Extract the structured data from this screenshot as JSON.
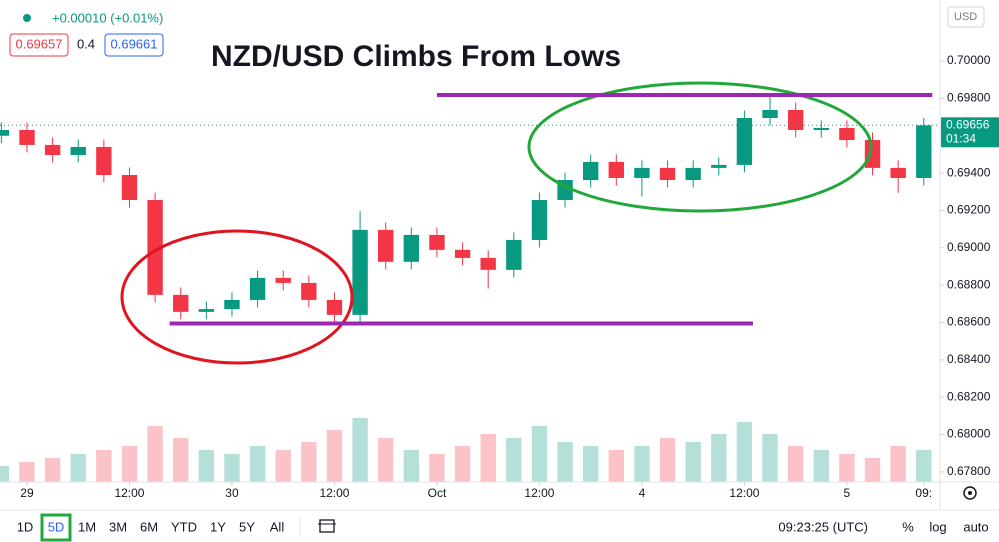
{
  "chart_data": {
    "type": "candlestick",
    "title": "NZD/USD Climbs From Lows",
    "currency": "USD",
    "x": [
      -3,
      0,
      3,
      6,
      9,
      12,
      15,
      18,
      21,
      24,
      27,
      30,
      33,
      36,
      39,
      42,
      45,
      48,
      51,
      54,
      57,
      60,
      63,
      66,
      69,
      72,
      75,
      78,
      81,
      84,
      87,
      90,
      93,
      96,
      99,
      102,
      105
    ],
    "open": [
      0.696,
      0.69631,
      0.69551,
      0.69497,
      0.6954,
      0.6939,
      0.69256,
      0.68748,
      0.68657,
      0.68672,
      0.68721,
      0.68839,
      0.68812,
      0.68721,
      0.68641,
      0.69096,
      0.68925,
      0.69069,
      0.68989,
      0.68946,
      0.68882,
      0.69042,
      0.69256,
      0.69363,
      0.6946,
      0.69374,
      0.69428,
      0.69363,
      0.69428,
      0.69444,
      0.69695,
      0.69738,
      0.69631,
      0.69642,
      0.69577,
      0.69428,
      0.69374
    ],
    "high": [
      0.69671,
      0.69671,
      0.69591,
      0.6958,
      0.6958,
      0.6943,
      0.69296,
      0.68788,
      0.68712,
      0.68761,
      0.68879,
      0.68879,
      0.68852,
      0.68761,
      0.69196,
      0.69136,
      0.69109,
      0.69109,
      0.69029,
      0.68986,
      0.69082,
      0.69296,
      0.69403,
      0.695,
      0.695,
      0.69468,
      0.69468,
      0.69468,
      0.69484,
      0.69735,
      0.69818,
      0.69778,
      0.69682,
      0.69682,
      0.69617,
      0.69468,
      0.69696
    ],
    "low": [
      0.6956,
      0.69511,
      0.69457,
      0.69457,
      0.6935,
      0.69216,
      0.68708,
      0.68617,
      0.68617,
      0.68632,
      0.68681,
      0.68772,
      0.68681,
      0.68601,
      0.68601,
      0.68885,
      0.68885,
      0.68949,
      0.68906,
      0.68782,
      0.68842,
      0.69002,
      0.69216,
      0.69323,
      0.69334,
      0.69274,
      0.69323,
      0.69323,
      0.69388,
      0.69404,
      0.69655,
      0.69591,
      0.69591,
      0.69537,
      0.69388,
      0.69294,
      0.69334
    ],
    "close": [
      0.69631,
      0.69551,
      0.69497,
      0.6954,
      0.6939,
      0.69256,
      0.68748,
      0.68657,
      0.68672,
      0.68721,
      0.68839,
      0.68812,
      0.68721,
      0.68641,
      0.69096,
      0.68925,
      0.69069,
      0.68989,
      0.68946,
      0.68882,
      0.69042,
      0.69256,
      0.69363,
      0.6946,
      0.69374,
      0.69428,
      0.69363,
      0.69428,
      0.69444,
      0.69695,
      0.69738,
      0.69631,
      0.69642,
      0.69577,
      0.69428,
      0.69374,
      0.69656
    ],
    "volume": [
      20,
      25,
      30,
      35,
      40,
      45,
      70,
      55,
      40,
      35,
      45,
      40,
      50,
      65,
      80,
      55,
      40,
      35,
      45,
      60,
      55,
      70,
      50,
      45,
      40,
      45,
      55,
      50,
      60,
      75,
      60,
      45,
      40,
      35,
      30,
      45,
      40
    ],
    "up_color": "#089981",
    "down_color": "#f23645",
    "level_color": "#9c27b0",
    "levels": [
      {
        "value": 0.69818,
        "start": 48,
        "end": 106
      },
      {
        "value": 0.68595,
        "start": 16.7,
        "end": 85
      }
    ],
    "last_price": 0.69656,
    "countdown": "01:34",
    "xlim": [
      -3.16,
      106.9
    ],
    "ylim": [
      0.67746,
      0.70327
    ],
    "xticks": [
      {
        "value": 0,
        "label": "29"
      },
      {
        "value": 12,
        "label": "12:00"
      },
      {
        "value": 24,
        "label": "30"
      },
      {
        "value": 36,
        "label": "12:00"
      },
      {
        "value": 48,
        "label": "Oct"
      },
      {
        "value": 60,
        "label": "12:00"
      },
      {
        "value": 72,
        "label": "4"
      },
      {
        "value": 84,
        "label": "12:00"
      },
      {
        "value": 96,
        "label": "5"
      },
      {
        "value": 105,
        "label": "09:"
      }
    ],
    "yticks": [
      {
        "value": 0.7,
        "label": "0.70000"
      },
      {
        "value": 0.698,
        "label": "0.69800"
      },
      {
        "value": 0.696,
        "label": "0.69600"
      },
      {
        "value": 0.694,
        "label": "0.69400"
      },
      {
        "value": 0.692,
        "label": "0.69200"
      },
      {
        "value": 0.69,
        "label": "0.69000"
      },
      {
        "value": 0.688,
        "label": "0.68800"
      },
      {
        "value": 0.686,
        "label": "0.68600"
      },
      {
        "value": 0.684,
        "label": "0.68400"
      },
      {
        "value": 0.682,
        "label": "0.68200"
      },
      {
        "value": 0.68,
        "label": "0.68000"
      },
      {
        "value": 0.678,
        "label": "0.67800"
      }
    ]
  },
  "header": {
    "change": "+0.00010 (+0.01%)",
    "bid": "0.69657",
    "spread": "0.4",
    "ask": "0.69661"
  },
  "toolbar": {
    "ranges": [
      "1D",
      "5D",
      "1M",
      "3M",
      "6M",
      "YTD",
      "1Y",
      "5Y",
      "All"
    ],
    "active_range": 1,
    "clock": "09:23:25 (UTC)",
    "options": [
      "%",
      "log",
      "auto"
    ]
  }
}
